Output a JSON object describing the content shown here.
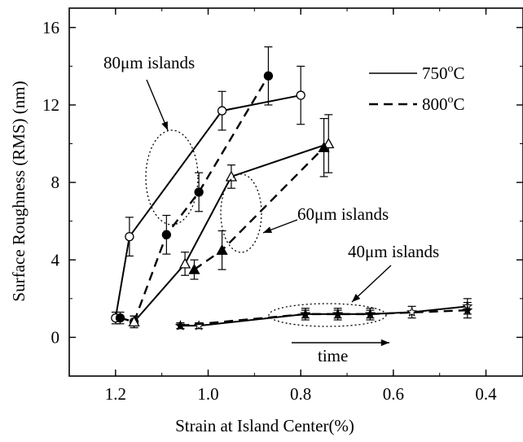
{
  "chart_data": {
    "type": "line",
    "title": "",
    "xlabel": "Strain at Island Center(%)",
    "ylabel": "Surface Roughness (RMS) (nm)",
    "xlim": [
      1.3,
      0.32
    ],
    "ylim": [
      -2,
      17
    ],
    "x_reversed": true,
    "x_ticks": [
      1.2,
      1.0,
      0.8,
      0.6,
      0.4
    ],
    "x_tick_labels": [
      "1.2",
      "1.0",
      "0.8",
      "0.6",
      "0.4"
    ],
    "y_ticks": [
      0,
      4,
      8,
      12,
      16
    ],
    "y_tick_labels": [
      "0",
      "4",
      "8",
      "12",
      "16"
    ],
    "grid": false,
    "legend": {
      "placement": "top-right",
      "entries": [
        {
          "label": "750°C",
          "base": "750",
          "sup": "o",
          "tail": "C",
          "style": "solid"
        },
        {
          "label": "800°C",
          "base": "800",
          "sup": "o",
          "tail": "C",
          "style": "dashed"
        }
      ]
    },
    "annotations": [
      {
        "id": "a80",
        "text": "80μm islands"
      },
      {
        "id": "a60",
        "text": "60μm islands"
      },
      {
        "id": "a40",
        "text": "40μm islands"
      },
      {
        "id": "time",
        "text": "time"
      }
    ],
    "series": [
      {
        "group": "80μm islands",
        "temperature": "750°C",
        "line": "solid",
        "marker": "circle",
        "fill": "open",
        "points": [
          {
            "x": 1.2,
            "y": 1.0,
            "err": 0.3
          },
          {
            "x": 1.17,
            "y": 5.2,
            "err": 1.0
          },
          {
            "x": 0.97,
            "y": 11.7,
            "err": 1.0
          },
          {
            "x": 0.8,
            "y": 12.5,
            "err": 1.5
          }
        ]
      },
      {
        "group": "80μm islands",
        "temperature": "800°C",
        "line": "dashed",
        "marker": "circle",
        "fill": "filled",
        "points": [
          {
            "x": 1.19,
            "y": 1.0,
            "err": 0.3
          },
          {
            "x": 1.16,
            "y": 0.8,
            "err": 0.3
          },
          {
            "x": 1.09,
            "y": 5.3,
            "err": 1.0
          },
          {
            "x": 1.02,
            "y": 7.5,
            "err": 1.0
          },
          {
            "x": 0.87,
            "y": 13.5,
            "err": 1.5
          }
        ]
      },
      {
        "group": "60μm islands",
        "temperature": "750°C",
        "line": "solid",
        "marker": "triangle",
        "fill": "open",
        "points": [
          {
            "x": 1.16,
            "y": 0.8,
            "err": 0.3
          },
          {
            "x": 1.05,
            "y": 3.8,
            "err": 0.6
          },
          {
            "x": 0.95,
            "y": 8.3,
            "err": 0.6
          },
          {
            "x": 0.74,
            "y": 10.0,
            "err": 1.5
          }
        ]
      },
      {
        "group": "60μm islands",
        "temperature": "800°C",
        "line": "dashed",
        "marker": "triangle",
        "fill": "filled",
        "points": [
          {
            "x": 1.03,
            "y": 3.5,
            "err": 0.5
          },
          {
            "x": 0.97,
            "y": 4.5,
            "err": 1.0
          },
          {
            "x": 0.75,
            "y": 9.8,
            "err": 1.5
          }
        ]
      },
      {
        "group": "40μm islands",
        "temperature": "750°C",
        "line": "solid",
        "marker": "star",
        "fill": "open",
        "points": [
          {
            "x": 1.06,
            "y": 0.6,
            "err": 0.15
          },
          {
            "x": 1.02,
            "y": 0.6,
            "err": 0.15
          },
          {
            "x": 0.79,
            "y": 1.2,
            "err": 0.3
          },
          {
            "x": 0.72,
            "y": 1.2,
            "err": 0.3
          },
          {
            "x": 0.65,
            "y": 1.2,
            "err": 0.3
          },
          {
            "x": 0.56,
            "y": 1.3,
            "err": 0.3
          },
          {
            "x": 0.44,
            "y": 1.6,
            "err": 0.4
          }
        ]
      },
      {
        "group": "40μm islands",
        "temperature": "800°C",
        "line": "dashed",
        "marker": "star",
        "fill": "filled",
        "points": [
          {
            "x": 1.06,
            "y": 0.6,
            "err": 0.15
          },
          {
            "x": 0.79,
            "y": 1.2,
            "err": 0.2
          },
          {
            "x": 0.72,
            "y": 1.2,
            "err": 0.2
          },
          {
            "x": 0.65,
            "y": 1.2,
            "err": 0.2
          },
          {
            "x": 0.44,
            "y": 1.4,
            "err": 0.4
          }
        ]
      }
    ]
  }
}
